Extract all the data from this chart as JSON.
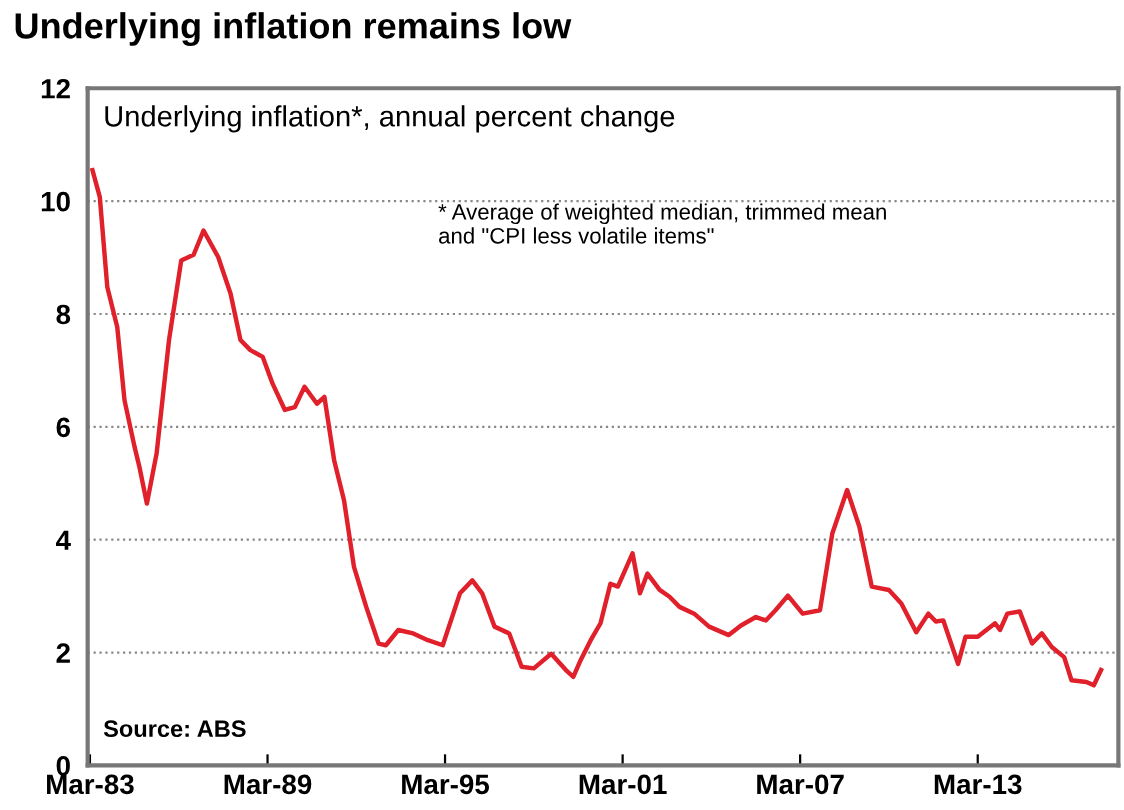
{
  "chart_data": {
    "type": "line",
    "title": "Underlying inflation remains low",
    "annotations": [
      "Underlying inflation*, annual percent change",
      "* Average of weighted median, trimmed mean\nand \"CPI less volatile items\"",
      "Source: ABS"
    ],
    "xlim": [
      "1983-02",
      "2017-12"
    ],
    "xticks": [
      {
        "value": "1983-03",
        "label": "Mar-83"
      },
      {
        "value": "1989-03",
        "label": "Mar-89"
      },
      {
        "value": "1995-03",
        "label": "Mar-95"
      },
      {
        "value": "2001-03",
        "label": "Mar-01"
      },
      {
        "value": "2007-03",
        "label": "Mar-07"
      },
      {
        "value": "2013-03",
        "label": "Mar-13"
      }
    ],
    "ylim": [
      0,
      12
    ],
    "yticks": [
      0,
      2,
      4,
      6,
      8,
      10,
      12
    ],
    "grid": "y",
    "legend": false,
    "marker": "none",
    "line_style": "solid",
    "series": [
      {
        "color": "#e0202a",
        "x": [
          "1983-04",
          "1983-07",
          "1983-10",
          "1984-02",
          "1984-05",
          "1984-09",
          "1984-11",
          "1985-02",
          "1985-06",
          "1985-11",
          "1986-04",
          "1986-09",
          "1987-01",
          "1987-07",
          "1987-12",
          "1988-04",
          "1988-08",
          "1989-01",
          "1989-05",
          "1989-10",
          "1990-02",
          "1990-06",
          "1990-11",
          "1991-02",
          "1991-06",
          "1991-10",
          "1992-02",
          "1992-07",
          "1992-12",
          "1993-03",
          "1993-08",
          "1994-02",
          "1994-08",
          "1995-02",
          "1995-09",
          "1996-02",
          "1996-06",
          "1996-11",
          "1997-05",
          "1997-10",
          "1998-03",
          "1998-10",
          "1999-04",
          "1999-07",
          "1999-10",
          "2000-02",
          "2000-06",
          "2000-10",
          "2001-01",
          "2001-07",
          "2001-10",
          "2002-01",
          "2002-06",
          "2002-10",
          "2003-02",
          "2003-08",
          "2004-02",
          "2004-10",
          "2005-03",
          "2005-09",
          "2006-01",
          "2006-05",
          "2006-10",
          "2007-04",
          "2007-11",
          "2008-04",
          "2008-10",
          "2009-03",
          "2009-08",
          "2010-03",
          "2010-08",
          "2011-02",
          "2011-07",
          "2011-10",
          "2012-01",
          "2012-07",
          "2012-10",
          "2013-03",
          "2013-10",
          "2013-12",
          "2014-03",
          "2014-08",
          "2015-01",
          "2015-05",
          "2015-09",
          "2016-02",
          "2016-05",
          "2016-11",
          "2017-02",
          "2017-05"
        ],
        "values": [
          10.55,
          10.07,
          8.48,
          7.77,
          6.47,
          5.65,
          5.29,
          4.64,
          5.53,
          7.54,
          8.95,
          9.05,
          9.48,
          9.01,
          8.36,
          7.54,
          7.36,
          7.24,
          6.77,
          6.3,
          6.35,
          6.71,
          6.41,
          6.53,
          5.41,
          4.7,
          3.52,
          2.81,
          2.16,
          2.13,
          2.4,
          2.34,
          2.22,
          2.13,
          3.05,
          3.28,
          3.05,
          2.46,
          2.34,
          1.75,
          1.72,
          1.98,
          1.69,
          1.57,
          1.87,
          2.22,
          2.52,
          3.22,
          3.17,
          3.76,
          3.05,
          3.4,
          3.11,
          2.99,
          2.81,
          2.69,
          2.46,
          2.31,
          2.48,
          2.63,
          2.57,
          2.75,
          3.01,
          2.69,
          2.75,
          4.11,
          4.88,
          4.23,
          3.17,
          3.11,
          2.87,
          2.36,
          2.69,
          2.55,
          2.57,
          1.8,
          2.28,
          2.28,
          2.52,
          2.4,
          2.69,
          2.73,
          2.16,
          2.34,
          2.1,
          1.92,
          1.51,
          1.48,
          1.42,
          1.69
        ]
      }
    ]
  }
}
